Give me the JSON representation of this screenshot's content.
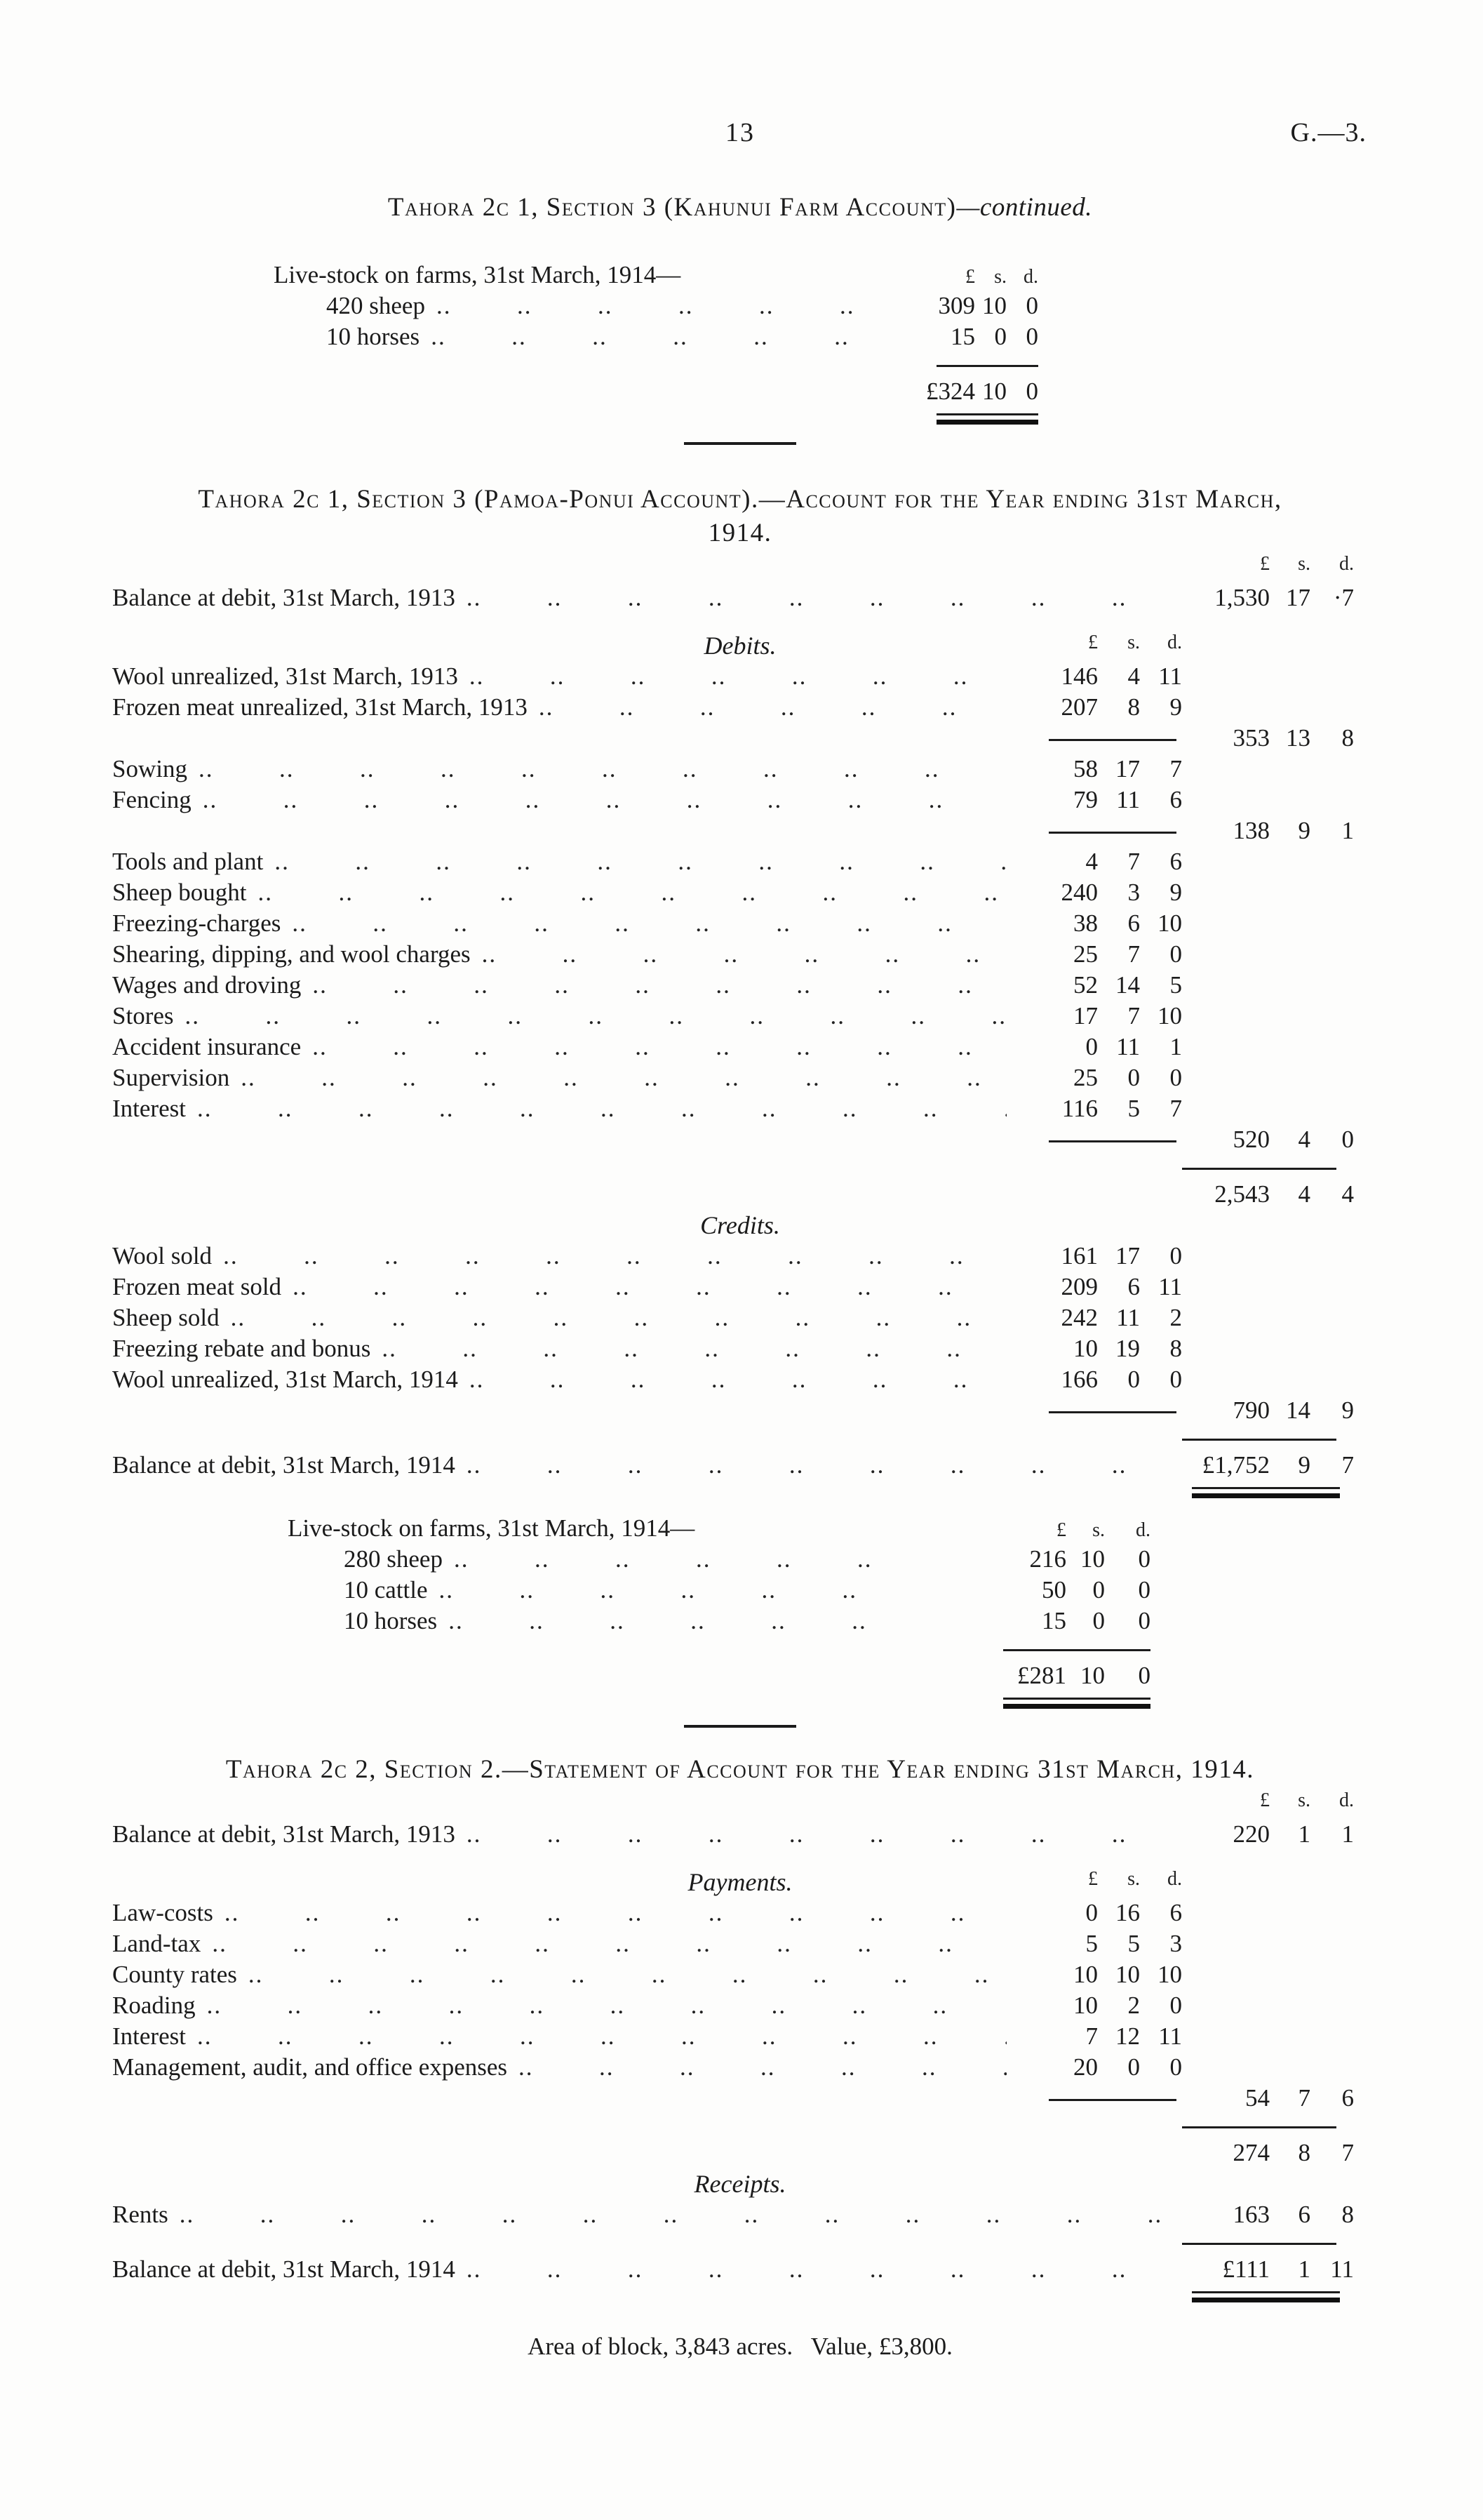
{
  "page": {
    "number": "13",
    "folio": "G.—3.",
    "footer": "Area of block, 3,843 acres.   Value, £3,800."
  },
  "money_header": [
    "£",
    "s.",
    "d."
  ],
  "sections": {
    "kahunui": {
      "title": "Tahora 2c 1, Section 3 (Kahunui Farm Account)",
      "title_suffix": "—continued.",
      "rows": [
        {
          "t": "head",
          "label": "Live-stock on farms, 31st March, 1914—",
          "ind": 1
        },
        {
          "t": "item",
          "label": "420 sheep",
          "ind": 2,
          "dots": true,
          "v": [
            "309",
            "10",
            "0"
          ]
        },
        {
          "t": "item",
          "label": "10 horses",
          "ind": 2,
          "dots": true,
          "v": [
            "15",
            "0",
            "0"
          ]
        },
        {
          "t": "rule"
        },
        {
          "t": "total",
          "v": [
            "£324",
            "10",
            "0"
          ]
        },
        {
          "t": "dblrule"
        }
      ]
    },
    "pamoa": {
      "title_line1": "Tahora 2c 1, Section 3 (Pamoa-Ponui Account).—Account for the Year ending 31st March,",
      "title_line2": "1914.",
      "rows": [
        {
          "t": "head",
          "group": "outer"
        },
        {
          "t": "item",
          "label": "Balance at debit, 31st March, 1913",
          "dots": true,
          "col": "outer",
          "v": [
            "1,530",
            "17",
            "·7"
          ]
        },
        {
          "t": "subhead",
          "text": "Debits.",
          "head": "inner",
          "gap": 24
        },
        {
          "t": "item",
          "label": "Wool unrealized, 31st March, 1913",
          "dots": true,
          "col": "inner",
          "v": [
            "146",
            "4",
            "11"
          ]
        },
        {
          "t": "item",
          "label": "Frozen meat unrealized, 31st March, 1913",
          "dots": true,
          "col": "inner",
          "v": [
            "207",
            "8",
            "9"
          ]
        },
        {
          "t": "subtotal",
          "v": [
            "353",
            "13",
            "8"
          ]
        },
        {
          "t": "item",
          "label": "Sowing",
          "dots": true,
          "col": "inner",
          "v": [
            "58",
            "17",
            "7"
          ]
        },
        {
          "t": "item",
          "label": "Fencing",
          "dots": true,
          "col": "inner",
          "v": [
            "79",
            "11",
            "6"
          ]
        },
        {
          "t": "subtotal",
          "v": [
            "138",
            "9",
            "1"
          ]
        },
        {
          "t": "item",
          "label": "Tools and plant",
          "dots": true,
          "col": "inner",
          "v": [
            "4",
            "7",
            "6"
          ]
        },
        {
          "t": "item",
          "label": "Sheep bought",
          "dots": true,
          "col": "inner",
          "v": [
            "240",
            "3",
            "9"
          ]
        },
        {
          "t": "item",
          "label": "Freezing-charges",
          "dots": true,
          "col": "inner",
          "v": [
            "38",
            "6",
            "10"
          ]
        },
        {
          "t": "item",
          "label": "Shearing, dipping, and wool charges",
          "dots": true,
          "col": "inner",
          "v": [
            "25",
            "7",
            "0"
          ]
        },
        {
          "t": "item",
          "label": "Wages and droving",
          "dots": true,
          "col": "inner",
          "v": [
            "52",
            "14",
            "5"
          ]
        },
        {
          "t": "item",
          "label": "Stores",
          "dots": true,
          "col": "inner",
          "v": [
            "17",
            "7",
            "10"
          ]
        },
        {
          "t": "item",
          "label": "Accident insurance",
          "dots": true,
          "col": "inner",
          "v": [
            "0",
            "11",
            "1"
          ]
        },
        {
          "t": "item",
          "label": "Supervision",
          "dots": true,
          "col": "inner",
          "v": [
            "25",
            "0",
            "0"
          ]
        },
        {
          "t": "item",
          "label": "Interest",
          "dots": true,
          "col": "inner",
          "v": [
            "116",
            "5",
            "7"
          ]
        },
        {
          "t": "subtotal",
          "v": [
            "520",
            "4",
            "0"
          ]
        },
        {
          "t": "rule",
          "group": "outer"
        },
        {
          "t": "total",
          "group": "outer",
          "v": [
            "2,543",
            "4",
            "4"
          ]
        },
        {
          "t": "subhead",
          "text": "Credits."
        },
        {
          "t": "item",
          "label": "Wool sold",
          "dots": true,
          "col": "inner",
          "v": [
            "161",
            "17",
            "0"
          ]
        },
        {
          "t": "item",
          "label": "Frozen meat sold",
          "dots": true,
          "col": "inner",
          "v": [
            "209",
            "6",
            "11"
          ]
        },
        {
          "t": "item",
          "label": "Sheep sold",
          "dots": true,
          "col": "inner",
          "v": [
            "242",
            "11",
            "2"
          ]
        },
        {
          "t": "item",
          "label": "Freezing rebate and bonus",
          "dots": true,
          "col": "inner",
          "v": [
            "10",
            "19",
            "8"
          ]
        },
        {
          "t": "item",
          "label": "Wool unrealized, 31st March, 1914",
          "dots": true,
          "col": "inner",
          "v": [
            "166",
            "0",
            "0"
          ]
        },
        {
          "t": "subtotal",
          "v": [
            "790",
            "14",
            "9"
          ]
        },
        {
          "t": "rule",
          "group": "outer"
        },
        {
          "t": "item",
          "label": "Balance at debit, 31st March, 1914",
          "dots": true,
          "col": "outer",
          "v": [
            "£1,752",
            "9",
            "7"
          ]
        },
        {
          "t": "dblrule",
          "group": "outer"
        }
      ]
    },
    "livestock_1914": {
      "rows": [
        {
          "t": "head",
          "label": "Live-stock on farms, 31st March, 1914—",
          "ind": 1
        },
        {
          "t": "item",
          "label": "280 sheep",
          "ind": 2,
          "dots": true,
          "v": [
            "216",
            "10",
            "0"
          ]
        },
        {
          "t": "item",
          "label": "10 cattle",
          "ind": 2,
          "dots": true,
          "v": [
            "50",
            "0",
            "0"
          ]
        },
        {
          "t": "item",
          "label": "10 horses",
          "ind": 2,
          "dots": true,
          "v": [
            "15",
            "0",
            "0"
          ]
        },
        {
          "t": "rule"
        },
        {
          "t": "total",
          "v": [
            "£281",
            "10",
            "0"
          ]
        },
        {
          "t": "dblrule"
        }
      ]
    },
    "tahora2c2": {
      "title": "Tahora 2c 2, Section 2.—Statement of Account for the Year ending 31st March, 1914.",
      "rows": [
        {
          "t": "head",
          "group": "outer"
        },
        {
          "t": "item",
          "label": "Balance at debit, 31st March, 1913",
          "dots": true,
          "col": "outer",
          "v": [
            "220",
            "1",
            "1"
          ]
        },
        {
          "t": "subhead",
          "text": "Payments.",
          "head": "inner",
          "gap": 24
        },
        {
          "t": "item",
          "label": "Law-costs",
          "dots": true,
          "col": "inner",
          "v": [
            "0",
            "16",
            "6"
          ]
        },
        {
          "t": "item",
          "label": "Land-tax",
          "dots": true,
          "col": "inner",
          "v": [
            "5",
            "5",
            "3"
          ]
        },
        {
          "t": "item",
          "label": "County rates",
          "dots": true,
          "col": "inner",
          "v": [
            "10",
            "10",
            "10"
          ]
        },
        {
          "t": "item",
          "label": "Roading",
          "dots": true,
          "col": "inner",
          "v": [
            "10",
            "2",
            "0"
          ]
        },
        {
          "t": "item",
          "label": "Interest",
          "dots": true,
          "col": "inner",
          "v": [
            "7",
            "12",
            "11"
          ]
        },
        {
          "t": "item",
          "label": "Management, audit, and office expenses",
          "dots": true,
          "col": "inner",
          "v": [
            "20",
            "0",
            "0"
          ]
        },
        {
          "t": "subtotal",
          "v": [
            "54",
            "7",
            "6"
          ]
        },
        {
          "t": "rule",
          "group": "outer"
        },
        {
          "t": "total",
          "group": "outer",
          "v": [
            "274",
            "8",
            "7"
          ]
        },
        {
          "t": "subhead",
          "text": "Receipts."
        },
        {
          "t": "item",
          "label": "Rents",
          "dots": true,
          "col": "outer",
          "v": [
            "163",
            "6",
            "8"
          ]
        },
        {
          "t": "rule",
          "group": "outer"
        },
        {
          "t": "item",
          "label": "Balance at debit, 31st March, 1914",
          "dots": true,
          "col": "outer",
          "v": [
            "£111",
            "1",
            "11"
          ]
        },
        {
          "t": "dblrule",
          "group": "outer"
        }
      ]
    }
  }
}
